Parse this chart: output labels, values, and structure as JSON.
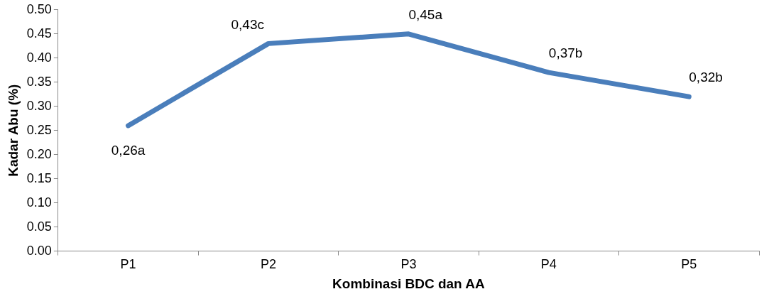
{
  "chart_data": {
    "type": "line",
    "xlabel": "Kombinasi BDC dan AA",
    "ylabel": "Kadar Abu (%)",
    "categories": [
      "P1",
      "P2",
      "P3",
      "P4",
      "P5"
    ],
    "series": [
      {
        "color": "#4a7ebb",
        "values": [
          0.26,
          0.43,
          0.45,
          0.37,
          0.32
        ],
        "value_labels": [
          "0,26a",
          "0,43c",
          "0,45a",
          "0,37b",
          "0,32b"
        ]
      }
    ],
    "ylim": [
      0,
      0.5
    ],
    "yticks": [
      {
        "value": 0,
        "label": "0.00"
      },
      {
        "value": 0.05,
        "label": "0.05"
      },
      {
        "value": 0.1,
        "label": "0.10"
      },
      {
        "value": 0.15,
        "label": "0.15"
      },
      {
        "value": 0.2,
        "label": "0.20"
      },
      {
        "value": 0.25,
        "label": "0.25"
      },
      {
        "value": 0.3,
        "label": "0.30"
      },
      {
        "value": 0.35,
        "label": "0.35"
      },
      {
        "value": 0.4,
        "label": "0.40"
      },
      {
        "value": 0.45,
        "label": "0.45"
      },
      {
        "value": 0.5,
        "label": "0.50"
      }
    ],
    "grid": false,
    "legend": false,
    "marker": "none",
    "line_style": "solid"
  }
}
